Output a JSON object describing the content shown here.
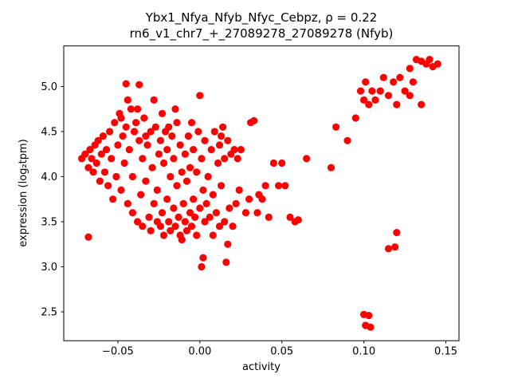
{
  "chart_data": {
    "type": "scatter",
    "title_line1": "Ybx1_Nfya_Nfyb_Nfyc_Cebpz, ρ = 0.22",
    "title_line2": "rn6_v1_chr7_+_27089278_27089278 (Nfyb)",
    "xlabel": "activity",
    "ylabel": "expression (log₂tpm)",
    "xlim": [
      -0.083,
      0.158
    ],
    "ylim": [
      2.18,
      5.45
    ],
    "xticks": [
      -0.05,
      0.0,
      0.05,
      0.1,
      0.15
    ],
    "xtick_labels": [
      "−0.05",
      "0.00",
      "0.05",
      "0.10",
      "0.15"
    ],
    "yticks": [
      2.5,
      3.0,
      3.5,
      4.0,
      4.5,
      5.0
    ],
    "ytick_labels": [
      "2.5",
      "3.0",
      "3.5",
      "4.0",
      "4.5",
      "5.0"
    ],
    "marker_color": "#ff0000",
    "marker_radius": 4.6,
    "legend": "none",
    "grid": false,
    "points": [
      [
        -0.072,
        4.2
      ],
      [
        -0.07,
        4.25
      ],
      [
        -0.068,
        4.1
      ],
      [
        -0.067,
        4.3
      ],
      [
        -0.066,
        4.2
      ],
      [
        -0.065,
        4.05
      ],
      [
        -0.064,
        4.35
      ],
      [
        -0.063,
        4.15
      ],
      [
        -0.062,
        4.4
      ],
      [
        -0.061,
        3.95
      ],
      [
        -0.06,
        4.25
      ],
      [
        -0.059,
        4.45
      ],
      [
        -0.058,
        4.05
      ],
      [
        -0.057,
        4.3
      ],
      [
        -0.056,
        3.9
      ],
      [
        -0.068,
        3.33
      ],
      [
        -0.055,
        4.5
      ],
      [
        -0.054,
        4.2
      ],
      [
        -0.053,
        3.75
      ],
      [
        -0.052,
        4.6
      ],
      [
        -0.051,
        4.0
      ],
      [
        -0.05,
        4.35
      ],
      [
        -0.049,
        4.7
      ],
      [
        -0.048,
        3.85
      ],
      [
        -0.047,
        4.45
      ],
      [
        -0.046,
        4.15
      ],
      [
        -0.045,
        5.03
      ],
      [
        -0.045,
        4.55
      ],
      [
        -0.044,
        3.7
      ],
      [
        -0.043,
        4.3
      ],
      [
        -0.042,
        4.75
      ],
      [
        -0.041,
        4.0
      ],
      [
        -0.04,
        4.5
      ],
      [
        -0.048,
        4.65
      ],
      [
        -0.044,
        4.85
      ],
      [
        -0.041,
        3.6
      ],
      [
        -0.039,
        4.6
      ],
      [
        -0.038,
        3.5
      ],
      [
        -0.037,
        5.02
      ],
      [
        -0.037,
        4.4
      ],
      [
        -0.036,
        3.8
      ],
      [
        -0.035,
        4.2
      ],
      [
        -0.035,
        3.45
      ],
      [
        -0.034,
        4.65
      ],
      [
        -0.033,
        3.95
      ],
      [
        -0.032,
        4.35
      ],
      [
        -0.031,
        3.55
      ],
      [
        -0.03,
        4.5
      ],
      [
        -0.03,
        3.4
      ],
      [
        -0.029,
        4.1
      ],
      [
        -0.028,
        3.7
      ],
      [
        -0.027,
        4.55
      ],
      [
        -0.026,
        3.5
      ],
      [
        -0.025,
        4.25
      ],
      [
        -0.038,
        4.75
      ],
      [
        -0.033,
        4.45
      ],
      [
        -0.028,
        4.85
      ],
      [
        -0.026,
        3.85
      ],
      [
        -0.024,
        3.45
      ],
      [
        -0.024,
        4.4
      ],
      [
        -0.023,
        3.6
      ],
      [
        -0.022,
        4.15
      ],
      [
        -0.022,
        3.35
      ],
      [
        -0.021,
        4.5
      ],
      [
        -0.02,
        3.75
      ],
      [
        -0.02,
        4.3
      ],
      [
        -0.019,
        3.5
      ],
      [
        -0.018,
        4.0
      ],
      [
        -0.018,
        3.4
      ],
      [
        -0.017,
        4.45
      ],
      [
        -0.016,
        3.65
      ],
      [
        -0.016,
        4.2
      ],
      [
        -0.015,
        3.45
      ],
      [
        -0.014,
        3.9
      ],
      [
        -0.014,
        4.6
      ],
      [
        -0.013,
        3.55
      ],
      [
        -0.012,
        4.35
      ],
      [
        -0.012,
        3.35
      ],
      [
        -0.011,
        4.05
      ],
      [
        -0.01,
        3.7
      ],
      [
        -0.023,
        4.7
      ],
      [
        -0.019,
        4.55
      ],
      [
        -0.015,
        4.75
      ],
      [
        -0.011,
        3.3
      ],
      [
        -0.009,
        4.25
      ],
      [
        -0.009,
        3.5
      ],
      [
        -0.008,
        3.95
      ],
      [
        -0.008,
        3.4
      ],
      [
        -0.007,
        4.45
      ],
      [
        -0.006,
        3.6
      ],
      [
        -0.006,
        4.1
      ],
      [
        -0.005,
        3.45
      ],
      [
        -0.004,
        4.3
      ],
      [
        -0.004,
        3.75
      ],
      [
        -0.003,
        3.55
      ],
      [
        -0.002,
        4.05
      ],
      [
        -0.002,
        3.35
      ],
      [
        -0.001,
        4.5
      ],
      [
        0.0,
        4.9
      ],
      [
        0.0,
        3.65
      ],
      [
        0.001,
        4.2
      ],
      [
        0.001,
        3.0
      ],
      [
        0.002,
        3.85
      ],
      [
        0.003,
        3.5
      ],
      [
        0.003,
        4.4
      ],
      [
        0.004,
        3.7
      ],
      [
        0.005,
        4.0
      ],
      [
        -0.005,
        4.6
      ],
      [
        0.002,
        3.1
      ],
      [
        0.006,
        3.55
      ],
      [
        0.007,
        4.3
      ],
      [
        0.008,
        3.8
      ],
      [
        0.008,
        3.35
      ],
      [
        0.009,
        4.5
      ],
      [
        0.01,
        3.6
      ],
      [
        0.011,
        4.15
      ],
      [
        0.012,
        3.45
      ],
      [
        0.012,
        4.35
      ],
      [
        0.013,
        3.9
      ],
      [
        0.014,
        4.55
      ],
      [
        0.015,
        3.5
      ],
      [
        0.015,
        4.2
      ],
      [
        0.016,
        3.05
      ],
      [
        0.017,
        4.4
      ],
      [
        0.018,
        3.65
      ],
      [
        0.019,
        4.25
      ],
      [
        0.02,
        3.45
      ],
      [
        0.021,
        4.3
      ],
      [
        0.022,
        3.7
      ],
      [
        0.023,
        4.2
      ],
      [
        0.024,
        3.85
      ],
      [
        0.025,
        4.3
      ],
      [
        0.013,
        4.45
      ],
      [
        0.017,
        3.25
      ],
      [
        0.028,
        3.6
      ],
      [
        0.03,
        3.75
      ],
      [
        0.031,
        4.6
      ],
      [
        0.033,
        4.62
      ],
      [
        0.035,
        3.6
      ],
      [
        0.036,
        3.8
      ],
      [
        0.038,
        3.75
      ],
      [
        0.04,
        3.9
      ],
      [
        0.042,
        3.55
      ],
      [
        0.045,
        4.15
      ],
      [
        0.048,
        3.9
      ],
      [
        0.05,
        4.15
      ],
      [
        0.052,
        3.9
      ],
      [
        0.055,
        3.55
      ],
      [
        0.058,
        3.5
      ],
      [
        0.06,
        3.52
      ],
      [
        0.065,
        4.2
      ],
      [
        0.08,
        4.1
      ],
      [
        0.083,
        4.55
      ],
      [
        0.09,
        4.4
      ],
      [
        0.095,
        4.65
      ],
      [
        0.098,
        4.95
      ],
      [
        0.1,
        4.85
      ],
      [
        0.101,
        5.05
      ],
      [
        0.103,
        4.8
      ],
      [
        0.105,
        4.95
      ],
      [
        0.107,
        4.85
      ],
      [
        0.11,
        4.95
      ],
      [
        0.112,
        5.1
      ],
      [
        0.115,
        4.9
      ],
      [
        0.118,
        5.05
      ],
      [
        0.12,
        4.8
      ],
      [
        0.122,
        5.1
      ],
      [
        0.125,
        4.95
      ],
      [
        0.128,
        5.2
      ],
      [
        0.13,
        5.05
      ],
      [
        0.132,
        5.3
      ],
      [
        0.135,
        5.28
      ],
      [
        0.138,
        5.25
      ],
      [
        0.14,
        5.3
      ],
      [
        0.142,
        5.22
      ],
      [
        0.145,
        5.25
      ],
      [
        0.135,
        4.8
      ],
      [
        0.128,
        4.9
      ],
      [
        0.1,
        2.47
      ],
      [
        0.103,
        2.46
      ],
      [
        0.101,
        2.35
      ],
      [
        0.104,
        2.33
      ],
      [
        0.115,
        3.2
      ],
      [
        0.119,
        3.22
      ],
      [
        0.12,
        3.38
      ]
    ]
  }
}
